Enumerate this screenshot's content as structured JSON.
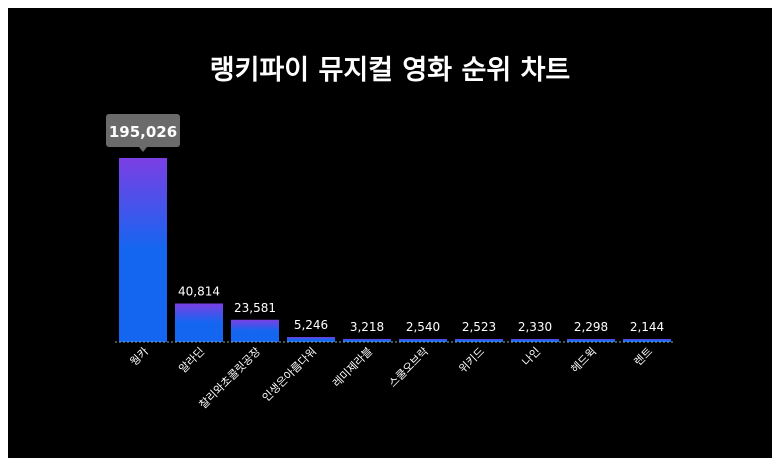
{
  "chart_data": {
    "type": "bar",
    "title": "랭키파이 뮤지컬 영화 순위 차트",
    "categories": [
      "웡카",
      "알라딘",
      "찰리와초콜릿공장",
      "인생은아름다워",
      "레미제라블",
      "스쿨오브락",
      "위키드",
      "나인",
      "헤드윅",
      "렌트"
    ],
    "values": [
      195026,
      40814,
      23581,
      5246,
      3218,
      2540,
      2523,
      2330,
      2298,
      2144
    ],
    "value_labels": [
      "195,026",
      "40,814",
      "23,581",
      "5,246",
      "3,218",
      "2,540",
      "2,523",
      "2,330",
      "2,298",
      "2,144"
    ],
    "highlighted_label": "195,026",
    "xlabel": "",
    "ylabel": "",
    "ylim": [
      0,
      195026
    ],
    "grid": false,
    "colors": {
      "bar_top": "#7b3fe4",
      "bar_bottom": "#1466f0",
      "tooltip": "#6b6b6b",
      "background": "#000000"
    }
  }
}
